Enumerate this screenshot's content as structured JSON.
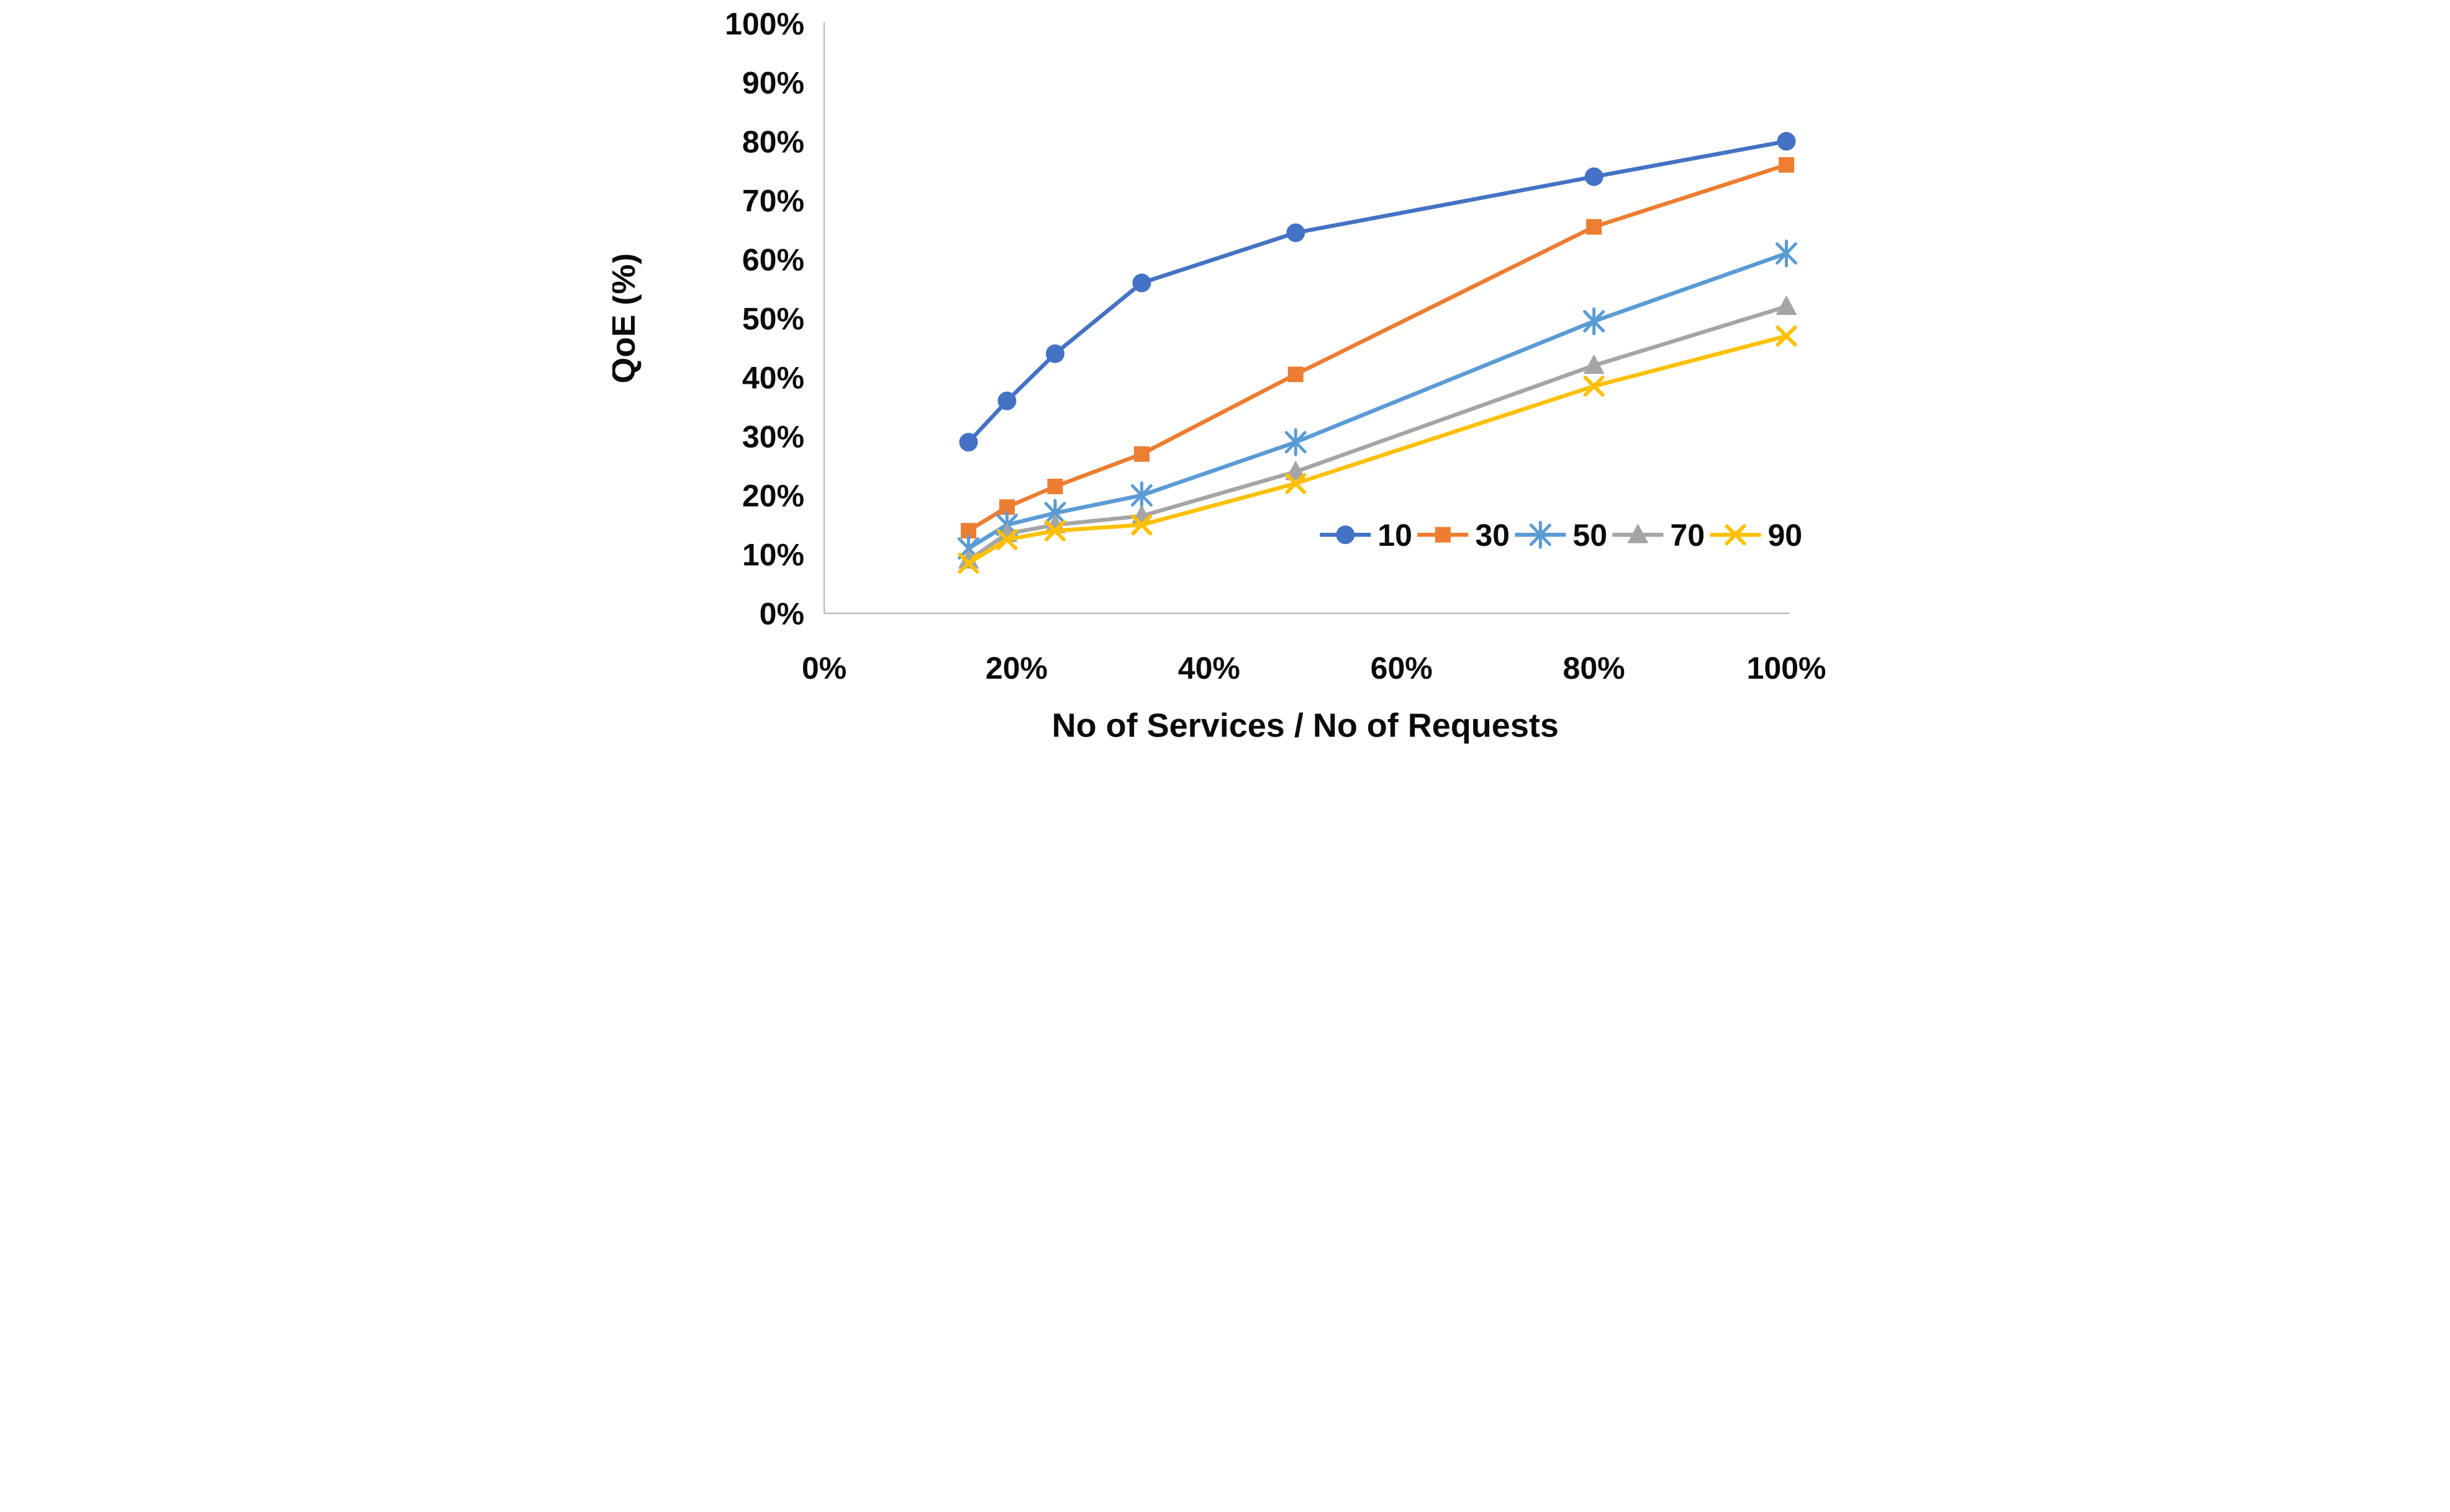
{
  "chart_data": {
    "type": "line",
    "title": "",
    "xlabel": "No of Services / No of Requests",
    "ylabel": "QoE (%)",
    "grid": false,
    "legend_position": "inside-middle-right",
    "legend_orientation": "horizontal",
    "xlim": [
      0,
      100
    ],
    "ylim": [
      0,
      100
    ],
    "x_ticks": [
      "0%",
      "20%",
      "40%",
      "60%",
      "80%",
      "100%"
    ],
    "x_tick_values": [
      0,
      20,
      40,
      60,
      80,
      100
    ],
    "y_ticks": [
      "0%",
      "10%",
      "20%",
      "30%",
      "40%",
      "50%",
      "60%",
      "70%",
      "80%",
      "90%",
      "100%"
    ],
    "y_tick_values": [
      0,
      10,
      20,
      30,
      40,
      50,
      60,
      70,
      80,
      90,
      100
    ],
    "x": [
      15,
      19,
      24,
      33,
      49,
      80,
      100
    ],
    "series": [
      {
        "name": "10",
        "marker": "circle",
        "color": "#4472C4",
        "values": [
          29,
          36,
          44,
          56,
          64.5,
          74,
          80
        ]
      },
      {
        "name": "30",
        "marker": "square",
        "color": "#ED7D31",
        "values": [
          14,
          18,
          21.5,
          27,
          40.5,
          65.5,
          76
        ]
      },
      {
        "name": "50",
        "marker": "asterisk",
        "color": "#5B9BD5",
        "values": [
          11,
          15,
          17,
          20,
          29,
          49.5,
          61
        ]
      },
      {
        "name": "70",
        "marker": "triangle",
        "color": "#A5A5A5",
        "values": [
          9,
          13.5,
          15,
          16.5,
          24,
          42,
          52
        ]
      },
      {
        "name": "90",
        "marker": "x",
        "color": "#FFC000",
        "values": [
          8.5,
          12.5,
          14,
          15,
          22,
          38.5,
          47
        ]
      }
    ],
    "axis_color": "#BFBFBF",
    "label_color": "#0b0b0b"
  }
}
